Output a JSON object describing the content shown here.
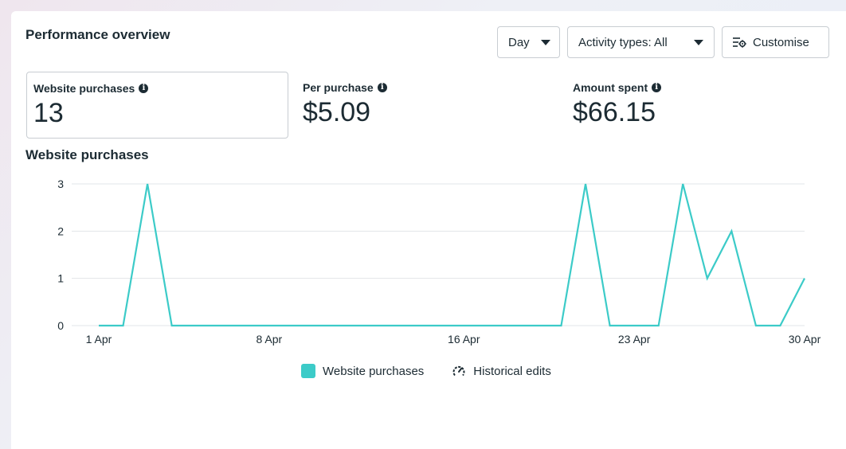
{
  "card": {
    "title": "Performance overview"
  },
  "toolbar": {
    "day_label": "Day",
    "activity_label": "Activity types: All",
    "customise_label": "Customise"
  },
  "metrics": [
    {
      "label": "Website purchases",
      "value": "13",
      "selected": true
    },
    {
      "label": "Per purchase",
      "value": "$5.09",
      "selected": false
    },
    {
      "label": "Amount spent",
      "value": "$66.15",
      "selected": false
    }
  ],
  "colors": {
    "series": "#3ccbc8",
    "grid": "#e2e5e8",
    "text": "#1c2b33"
  },
  "chart_data": {
    "type": "line",
    "title": "Website purchases",
    "x": [
      "1 Apr",
      "2 Apr",
      "3 Apr",
      "4 Apr",
      "5 Apr",
      "6 Apr",
      "7 Apr",
      "8 Apr",
      "9 Apr",
      "10 Apr",
      "11 Apr",
      "12 Apr",
      "13 Apr",
      "14 Apr",
      "15 Apr",
      "16 Apr",
      "17 Apr",
      "18 Apr",
      "19 Apr",
      "20 Apr",
      "21 Apr",
      "22 Apr",
      "23 Apr",
      "24 Apr",
      "25 Apr",
      "26 Apr",
      "27 Apr",
      "28 Apr",
      "29 Apr",
      "30 Apr"
    ],
    "series": [
      {
        "name": "Website purchases",
        "values": [
          0,
          0,
          3,
          0,
          0,
          0,
          0,
          0,
          0,
          0,
          0,
          0,
          0,
          0,
          0,
          0,
          0,
          0,
          0,
          0,
          3,
          0,
          0,
          0,
          3,
          1,
          2,
          0,
          0,
          1
        ]
      }
    ],
    "x_tick_labels": [
      "1 Apr",
      "8 Apr",
      "16 Apr",
      "23 Apr",
      "30 Apr"
    ],
    "y_ticks": [
      0,
      1,
      2,
      3
    ],
    "ylim": [
      0,
      3
    ],
    "grid": true,
    "legend": [
      {
        "label": "Website purchases",
        "icon": "teal-square"
      },
      {
        "label": "Historical edits",
        "icon": "gauge-icon"
      }
    ],
    "legend_position": "bottom-center"
  }
}
